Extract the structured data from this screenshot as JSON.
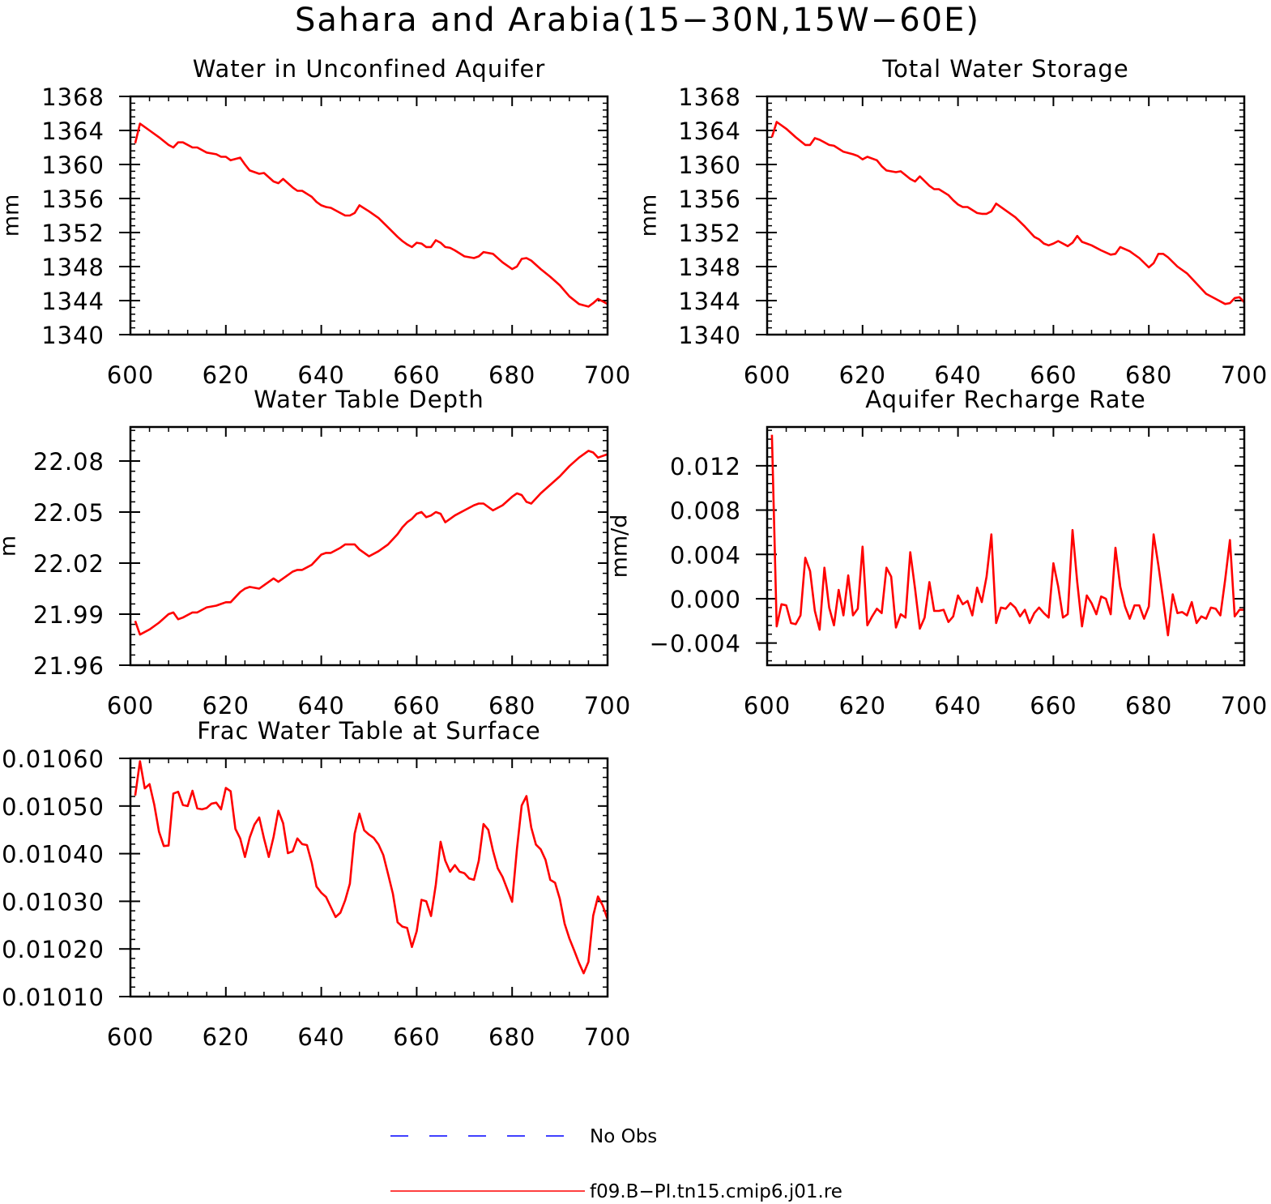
{
  "title": "Sahara and Arabia(15−30N,15W−60E)",
  "colors": {
    "model": "#ff0000",
    "obs": "#0000ff",
    "axis": "#000000"
  },
  "legend": {
    "obs_label": "No Obs",
    "model_label": "f09.B−PI.tn15.cmip6.j01.re"
  },
  "chart_data": [
    {
      "type": "line",
      "title": "Water in Unconfined Aquifer",
      "ylabel": "mm",
      "xlim": [
        600,
        700
      ],
      "ylim": [
        1340,
        1368
      ],
      "xticks": [
        600,
        620,
        640,
        660,
        680,
        700
      ],
      "yticks": [
        1340,
        1344,
        1348,
        1352,
        1356,
        1360,
        1364,
        1368
      ],
      "yticklabels": [
        "1340",
        "1344",
        "1348",
        "1352",
        "1356",
        "1360",
        "1364",
        "1368"
      ],
      "series": [
        {
          "name": "f09.B−PI.tn15.cmip6.j01.re",
          "x": [
            601,
            602,
            604,
            606,
            608,
            609,
            610,
            611,
            613,
            614,
            616,
            618,
            619,
            620,
            621,
            623,
            624,
            625,
            627,
            628,
            630,
            631,
            632,
            634,
            635,
            636,
            638,
            639,
            640,
            641,
            642,
            644,
            645,
            646,
            647,
            648,
            650,
            652,
            654,
            656,
            657,
            658,
            659,
            660,
            661,
            662,
            663,
            664,
            665,
            666,
            667,
            668,
            670,
            672,
            673,
            674,
            676,
            678,
            680,
            681,
            682,
            683,
            684,
            686,
            688,
            690,
            692,
            694,
            696,
            697,
            698,
            699,
            700
          ],
          "y": [
            1362.5,
            1364.8,
            1364.0,
            1363.2,
            1362.3,
            1362.0,
            1362.6,
            1362.6,
            1362.0,
            1362.0,
            1361.4,
            1361.2,
            1360.9,
            1360.9,
            1360.5,
            1360.8,
            1360.0,
            1359.3,
            1358.9,
            1359.0,
            1358.0,
            1357.8,
            1358.3,
            1357.3,
            1356.9,
            1356.9,
            1356.2,
            1355.6,
            1355.2,
            1355.0,
            1354.9,
            1354.3,
            1354.0,
            1354.0,
            1354.3,
            1355.2,
            1354.5,
            1353.7,
            1352.6,
            1351.5,
            1351.0,
            1350.6,
            1350.3,
            1350.8,
            1350.7,
            1350.3,
            1350.3,
            1351.1,
            1350.8,
            1350.3,
            1350.2,
            1349.9,
            1349.2,
            1349.0,
            1349.2,
            1349.7,
            1349.5,
            1348.5,
            1347.7,
            1348.0,
            1348.9,
            1349.0,
            1348.7,
            1347.7,
            1346.8,
            1345.8,
            1344.5,
            1343.6,
            1343.3,
            1343.7,
            1344.2,
            1343.9,
            1343.6
          ]
        }
      ]
    },
    {
      "type": "line",
      "title": "Total Water Storage",
      "ylabel": "mm",
      "xlim": [
        600,
        700
      ],
      "ylim": [
        1340,
        1368
      ],
      "xticks": [
        600,
        620,
        640,
        660,
        680,
        700
      ],
      "yticks": [
        1340,
        1344,
        1348,
        1352,
        1356,
        1360,
        1364,
        1368
      ],
      "yticklabels": [
        "1340",
        "1344",
        "1348",
        "1352",
        "1356",
        "1360",
        "1364",
        "1368"
      ],
      "series": [
        {
          "name": "f09.B−PI.tn15.cmip6.j01.re",
          "x": [
            601,
            602,
            604,
            606,
            608,
            609,
            610,
            611,
            613,
            614,
            616,
            618,
            619,
            620,
            621,
            623,
            624,
            625,
            627,
            628,
            630,
            631,
            632,
            634,
            635,
            636,
            638,
            639,
            640,
            641,
            642,
            644,
            645,
            646,
            647,
            648,
            650,
            652,
            654,
            656,
            657,
            658,
            659,
            660,
            661,
            662,
            663,
            664,
            665,
            666,
            667,
            668,
            670,
            672,
            673,
            674,
            676,
            678,
            680,
            681,
            682,
            683,
            684,
            686,
            688,
            690,
            692,
            694,
            696,
            697,
            698,
            699,
            700
          ],
          "y": [
            1363.2,
            1365.0,
            1364.2,
            1363.2,
            1362.3,
            1362.3,
            1363.1,
            1362.9,
            1362.3,
            1362.2,
            1361.5,
            1361.2,
            1361.0,
            1360.6,
            1360.9,
            1360.5,
            1359.8,
            1359.3,
            1359.1,
            1359.2,
            1358.3,
            1358.0,
            1358.6,
            1357.5,
            1357.1,
            1357.1,
            1356.4,
            1355.8,
            1355.3,
            1355.0,
            1355.0,
            1354.3,
            1354.2,
            1354.2,
            1354.5,
            1355.4,
            1354.6,
            1353.8,
            1352.7,
            1351.5,
            1351.2,
            1350.7,
            1350.5,
            1350.7,
            1351.0,
            1350.7,
            1350.4,
            1350.8,
            1351.6,
            1350.9,
            1350.7,
            1350.5,
            1349.9,
            1349.4,
            1349.5,
            1350.3,
            1349.8,
            1349.0,
            1347.9,
            1348.4,
            1349.5,
            1349.5,
            1349.1,
            1348.0,
            1347.2,
            1346.0,
            1344.8,
            1344.2,
            1343.6,
            1343.7,
            1344.3,
            1344.4,
            1343.8
          ]
        }
      ]
    },
    {
      "type": "line",
      "title": "Water Table Depth",
      "ylabel": "m",
      "xlim": [
        600,
        700
      ],
      "ylim": [
        21.96,
        22.1
      ],
      "xticks": [
        600,
        620,
        640,
        660,
        680,
        700
      ],
      "yticks": [
        21.96,
        21.99,
        22.02,
        22.05,
        22.08
      ],
      "yticklabels": [
        "21.96",
        "21.99",
        "22.02",
        "22.05",
        "22.08"
      ],
      "series": [
        {
          "name": "f09.B−PI.tn15.cmip6.j01.re",
          "x": [
            601,
            602,
            604,
            606,
            608,
            609,
            610,
            611,
            613,
            614,
            616,
            618,
            619,
            620,
            621,
            623,
            624,
            625,
            627,
            628,
            630,
            631,
            632,
            634,
            635,
            636,
            638,
            639,
            640,
            641,
            642,
            644,
            645,
            646,
            647,
            648,
            650,
            652,
            654,
            656,
            657,
            658,
            659,
            660,
            661,
            662,
            663,
            664,
            665,
            666,
            667,
            668,
            670,
            672,
            673,
            674,
            676,
            678,
            680,
            681,
            682,
            683,
            684,
            686,
            688,
            690,
            692,
            694,
            696,
            697,
            698,
            699,
            700
          ],
          "y": [
            21.986,
            21.978,
            21.981,
            21.985,
            21.99,
            21.991,
            21.987,
            21.988,
            21.991,
            21.991,
            21.994,
            21.995,
            21.996,
            21.997,
            21.997,
            22.003,
            22.005,
            22.006,
            22.005,
            22.007,
            22.011,
            22.009,
            22.011,
            22.015,
            22.016,
            22.016,
            22.019,
            22.022,
            22.025,
            22.026,
            22.026,
            22.029,
            22.031,
            22.031,
            22.031,
            22.028,
            22.024,
            22.027,
            22.031,
            22.037,
            22.041,
            22.044,
            22.046,
            22.049,
            22.05,
            22.047,
            22.048,
            22.05,
            22.049,
            22.044,
            22.046,
            22.048,
            22.051,
            22.054,
            22.055,
            22.055,
            22.051,
            22.054,
            22.059,
            22.061,
            22.06,
            22.056,
            22.055,
            22.061,
            22.066,
            22.071,
            22.077,
            22.082,
            22.086,
            22.085,
            22.082,
            22.083,
            22.084
          ]
        }
      ]
    },
    {
      "type": "line",
      "title": "Aquifer Recharge Rate",
      "ylabel": "mm/d",
      "xlim": [
        600,
        700
      ],
      "ylim": [
        -0.006,
        0.0155
      ],
      "xticks": [
        600,
        620,
        640,
        660,
        680,
        700
      ],
      "yticks": [
        -0.004,
        0.0,
        0.004,
        0.008,
        0.012
      ],
      "yticklabels": [
        "−0.004",
        "0.000",
        "0.004",
        "0.008",
        "0.012"
      ],
      "series": [
        {
          "name": "f09.B−PI.tn15.cmip6.j01.re",
          "x": [
            601,
            602,
            603,
            604,
            605,
            606,
            607,
            608,
            609,
            610,
            611,
            612,
            613,
            614,
            615,
            616,
            617,
            618,
            619,
            620,
            621,
            622,
            623,
            624,
            625,
            626,
            627,
            628,
            629,
            630,
            631,
            632,
            633,
            634,
            635,
            636,
            637,
            638,
            639,
            640,
            641,
            642,
            643,
            644,
            645,
            646,
            647,
            648,
            649,
            650,
            651,
            652,
            653,
            654,
            655,
            656,
            657,
            658,
            659,
            660,
            661,
            662,
            663,
            664,
            665,
            666,
            667,
            668,
            669,
            670,
            671,
            672,
            673,
            674,
            675,
            676,
            677,
            678,
            679,
            680,
            681,
            682,
            683,
            684,
            685,
            686,
            687,
            688,
            689,
            690,
            691,
            692,
            693,
            694,
            695,
            696,
            697,
            698,
            699,
            700
          ],
          "y": [
            0.0148,
            -0.0025,
            -0.0005,
            -0.0006,
            -0.0022,
            -0.0023,
            -0.0015,
            0.0037,
            0.0025,
            -0.0011,
            -0.0028,
            0.0028,
            -0.0008,
            -0.0024,
            0.0008,
            -0.0015,
            0.0021,
            -0.0015,
            -0.0009,
            0.0047,
            -0.0024,
            -0.0016,
            -0.0009,
            -0.0013,
            0.0028,
            0.002,
            -0.0026,
            -0.0014,
            -0.0017,
            0.0042,
            0.0009,
            -0.0027,
            -0.0017,
            0.0015,
            -0.0011,
            -0.0011,
            -0.001,
            -0.0021,
            -0.0016,
            0.0003,
            -0.0005,
            -0.0002,
            -0.0015,
            0.001,
            -0.0003,
            0.002,
            0.0058,
            -0.0022,
            -0.0008,
            -0.0009,
            -0.0004,
            -0.0008,
            -0.0016,
            -0.001,
            -0.0022,
            -0.0013,
            -0.0008,
            -0.0013,
            -0.0017,
            0.0032,
            0.0011,
            -0.0017,
            -0.0014,
            0.0062,
            0.0015,
            -0.0025,
            0.0003,
            -0.0004,
            -0.0014,
            0.0002,
            0.0,
            -0.0014,
            0.0046,
            0.0011,
            -0.0007,
            -0.0018,
            -0.0006,
            -0.0006,
            -0.0018,
            -0.0007,
            0.0058,
            0.003,
            -0.0001,
            -0.0033,
            0.0004,
            -0.0013,
            -0.0012,
            -0.0015,
            -0.0003,
            -0.0022,
            -0.0016,
            -0.0018,
            -0.0008,
            -0.0009,
            -0.0015,
            0.0017,
            0.0053,
            -0.0016,
            -0.001,
            -0.001
          ]
        }
      ]
    },
    {
      "type": "line",
      "title": "Frac Water Table at Surface",
      "ylabel": "",
      "xlim": [
        600,
        700
      ],
      "ylim": [
        0.0101,
        0.0106
      ],
      "xticks": [
        600,
        620,
        640,
        660,
        680,
        700
      ],
      "yticks": [
        0.0101,
        0.0102,
        0.0103,
        0.0104,
        0.0105,
        0.0106
      ],
      "yticklabels": [
        "0.01010",
        "0.01020",
        "0.01030",
        "0.01040",
        "0.01050",
        "0.01060"
      ],
      "series": [
        {
          "name": "f09.B−PI.tn15.cmip6.j01.re",
          "x": [
            601,
            602,
            603,
            604,
            605,
            606,
            607,
            608,
            609,
            610,
            611,
            612,
            613,
            614,
            615,
            616,
            617,
            618,
            619,
            620,
            621,
            622,
            623,
            624,
            625,
            626,
            627,
            628,
            629,
            630,
            631,
            632,
            633,
            634,
            635,
            636,
            637,
            638,
            639,
            640,
            641,
            642,
            643,
            644,
            645,
            646,
            647,
            648,
            649,
            650,
            651,
            652,
            653,
            654,
            655,
            656,
            657,
            658,
            659,
            660,
            661,
            662,
            663,
            664,
            665,
            666,
            667,
            668,
            669,
            670,
            671,
            672,
            673,
            674,
            675,
            676,
            677,
            678,
            679,
            680,
            681,
            682,
            683,
            684,
            685,
            686,
            687,
            688,
            689,
            690,
            691,
            692,
            693,
            694,
            695,
            696,
            697,
            698,
            699,
            700
          ],
          "y": [
            0.010522,
            0.010594,
            0.010537,
            0.010546,
            0.010503,
            0.010446,
            0.010416,
            0.010417,
            0.010526,
            0.01053,
            0.010502,
            0.0105,
            0.010532,
            0.010495,
            0.010493,
            0.010496,
            0.010505,
            0.010507,
            0.010493,
            0.010538,
            0.010531,
            0.010452,
            0.010432,
            0.010393,
            0.010434,
            0.010461,
            0.010476,
            0.010432,
            0.010393,
            0.010435,
            0.01049,
            0.010464,
            0.010401,
            0.010405,
            0.010432,
            0.01042,
            0.010418,
            0.010381,
            0.010331,
            0.010318,
            0.010309,
            0.010288,
            0.010267,
            0.010276,
            0.010302,
            0.010337,
            0.010442,
            0.010484,
            0.010449,
            0.01044,
            0.010433,
            0.010419,
            0.010397,
            0.010357,
            0.010316,
            0.010256,
            0.010247,
            0.010244,
            0.010204,
            0.010237,
            0.010303,
            0.0103,
            0.010269,
            0.010335,
            0.010425,
            0.010385,
            0.010362,
            0.010376,
            0.010362,
            0.010359,
            0.010348,
            0.010345,
            0.010385,
            0.010462,
            0.01045,
            0.010406,
            0.010369,
            0.010351,
            0.010325,
            0.010299,
            0.010409,
            0.010501,
            0.010521,
            0.010455,
            0.010419,
            0.010409,
            0.010387,
            0.010345,
            0.010339,
            0.010305,
            0.010253,
            0.010222,
            0.010197,
            0.010171,
            0.010149,
            0.010173,
            0.01027,
            0.01031,
            0.010291,
            0.010262
          ]
        }
      ]
    }
  ]
}
